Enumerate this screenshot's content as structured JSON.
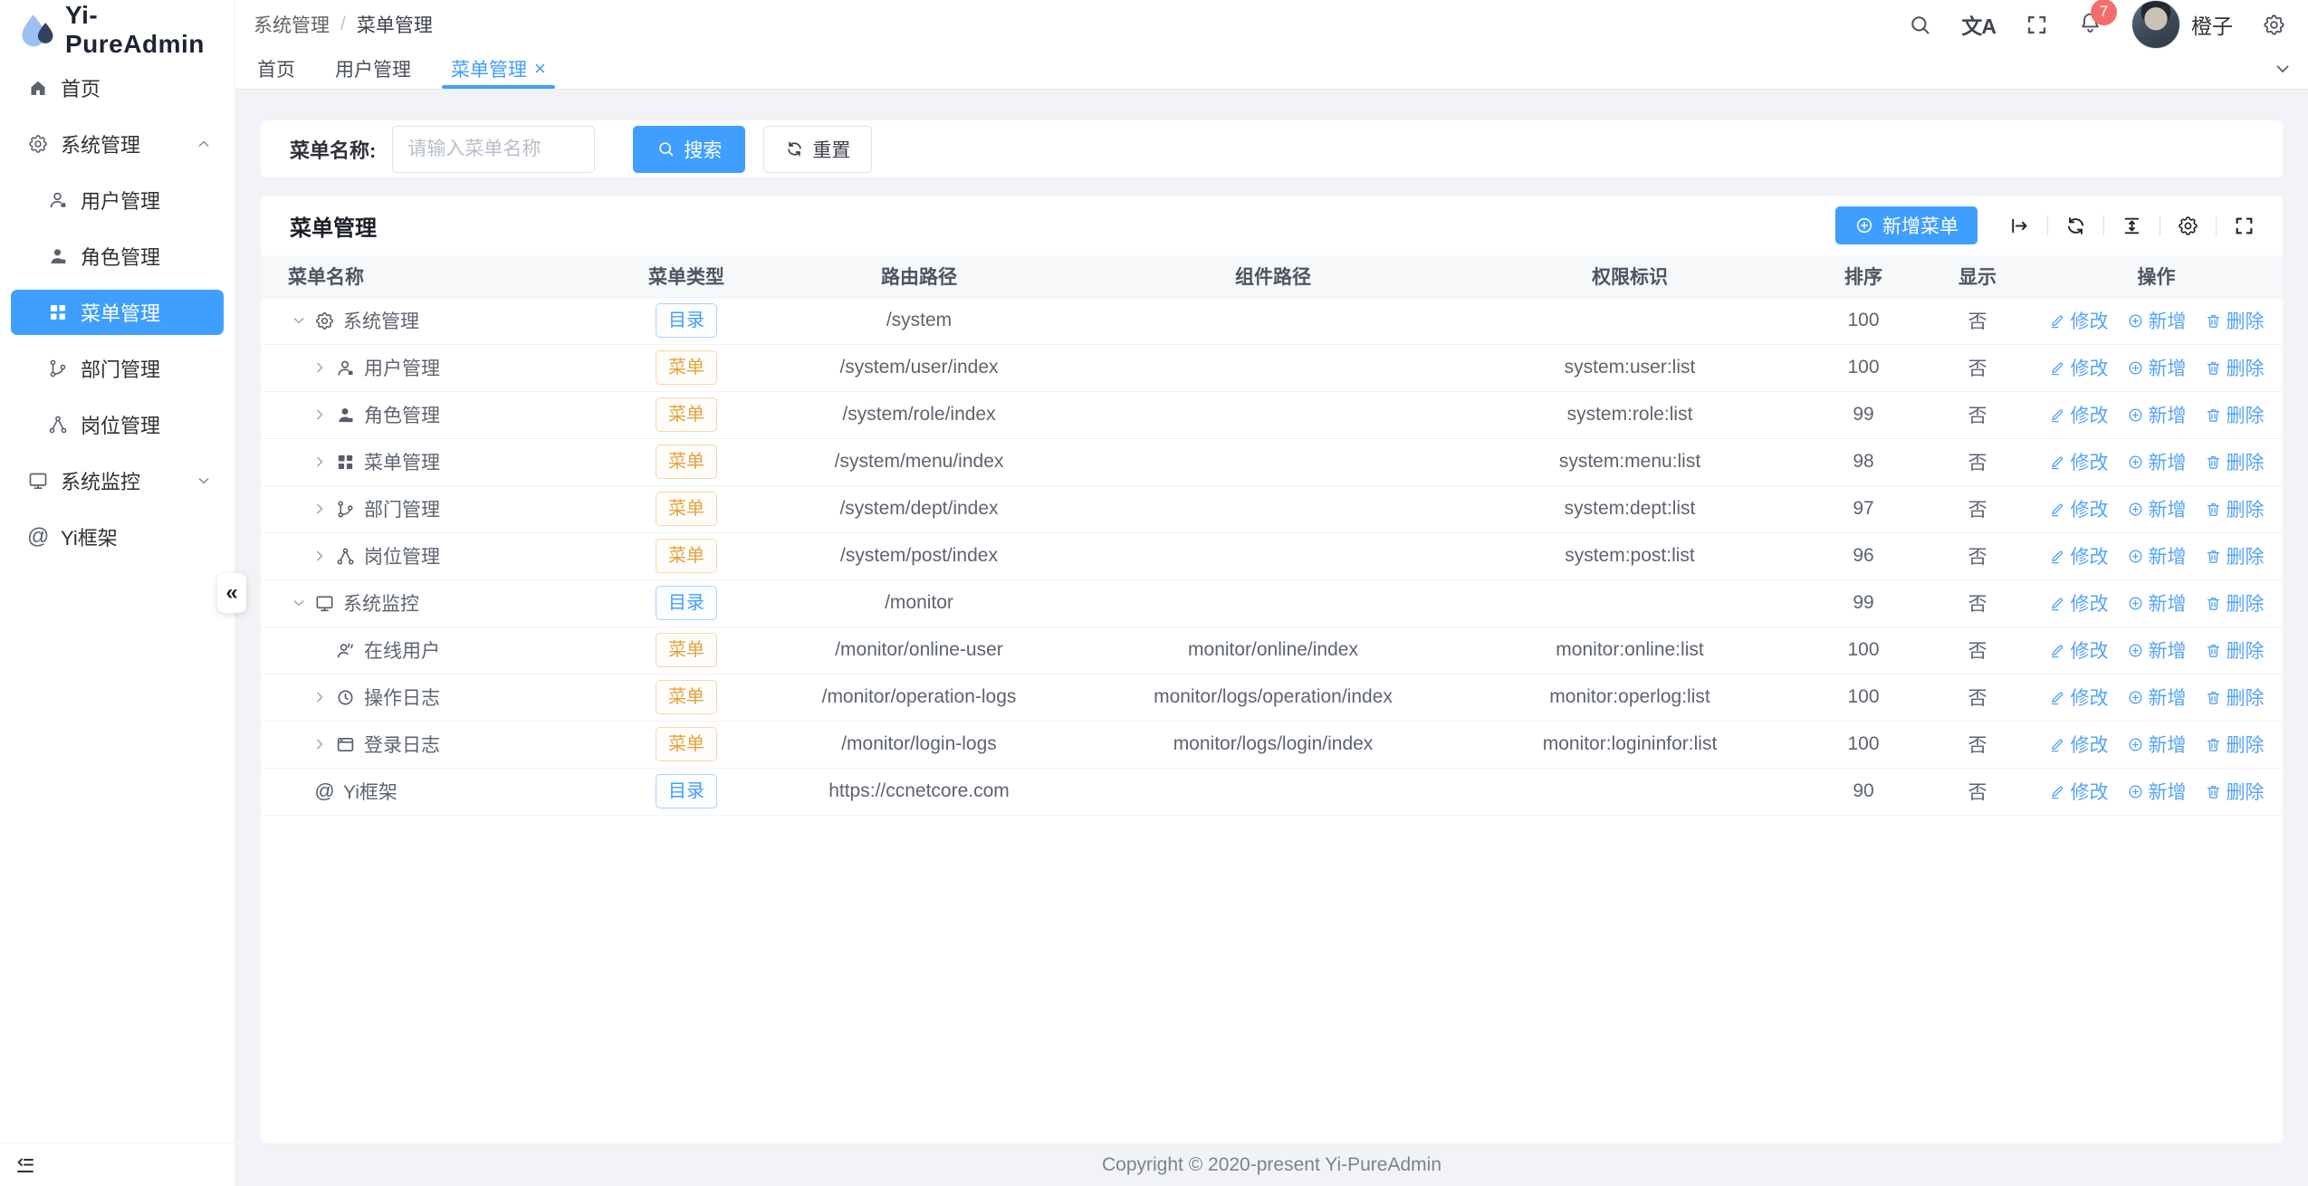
{
  "app": {
    "title": "Yi-PureAdmin"
  },
  "glyphs": {
    "collapse": "«",
    "close": "×",
    "translate": "文A",
    "at": "@"
  },
  "colors": {
    "primary": "#409eff",
    "badge": "#f56c6c",
    "tag_directory": "#409eff",
    "tag_menu": "#e6a23c"
  },
  "sidebar": {
    "logo_title": "Yi-PureAdmin",
    "items": [
      {
        "label": "首页",
        "icon": "home"
      },
      {
        "label": "系统管理",
        "icon": "gear",
        "state": "expanded"
      },
      {
        "label": "用户管理",
        "icon": "user"
      },
      {
        "label": "角色管理",
        "icon": "user-filled"
      },
      {
        "label": "菜单管理",
        "icon": "grid",
        "active": true
      },
      {
        "label": "部门管理",
        "icon": "tree"
      },
      {
        "label": "岗位管理",
        "icon": "share"
      },
      {
        "label": "系统监控",
        "icon": "monitor",
        "state": "collapsed"
      },
      {
        "label": "Yi框架",
        "icon": "at"
      }
    ]
  },
  "breadcrumb": {
    "items": [
      "系统管理",
      "菜单管理"
    ],
    "separator": "/"
  },
  "header": {
    "username": "橙子",
    "notification_count": "7"
  },
  "tabs": [
    {
      "label": "首页"
    },
    {
      "label": "用户管理"
    },
    {
      "label": "菜单管理",
      "active": true,
      "closable": true
    }
  ],
  "search": {
    "label": "菜单名称:",
    "placeholder": "请输入菜单名称",
    "value": "",
    "search_label": "搜索",
    "reset_label": "重置"
  },
  "panel": {
    "title": "菜单管理",
    "add_button": "新增菜单"
  },
  "table": {
    "columns": [
      "菜单名称",
      "菜单类型",
      "路由路径",
      "组件路径",
      "权限标识",
      "排序",
      "显示",
      "操作"
    ],
    "tag_labels": {
      "directory": "目录",
      "menu": "菜单"
    },
    "actions": [
      {
        "key": "edit",
        "label": "修改",
        "icon": "edit"
      },
      {
        "key": "add",
        "label": "新增",
        "icon": "circle-plus"
      },
      {
        "key": "delete",
        "label": "删除",
        "icon": "delete"
      }
    ],
    "rows": [
      {
        "name": "系统管理",
        "icon": "gear",
        "level": 0,
        "chevron": "down",
        "type": "directory",
        "route": "/system",
        "component": "",
        "perms": "",
        "sort": "100",
        "visible": "否"
      },
      {
        "name": "用户管理",
        "icon": "user",
        "level": 1,
        "chevron": "right",
        "type": "menu",
        "route": "/system/user/index",
        "component": "",
        "perms": "system:user:list",
        "sort": "100",
        "visible": "否"
      },
      {
        "name": "角色管理",
        "icon": "user-filled",
        "level": 1,
        "chevron": "right",
        "type": "menu",
        "route": "/system/role/index",
        "component": "",
        "perms": "system:role:list",
        "sort": "99",
        "visible": "否"
      },
      {
        "name": "菜单管理",
        "icon": "grid",
        "level": 1,
        "chevron": "right",
        "type": "menu",
        "route": "/system/menu/index",
        "component": "",
        "perms": "system:menu:list",
        "sort": "98",
        "visible": "否"
      },
      {
        "name": "部门管理",
        "icon": "tree",
        "level": 1,
        "chevron": "right",
        "type": "menu",
        "route": "/system/dept/index",
        "component": "",
        "perms": "system:dept:list",
        "sort": "97",
        "visible": "否"
      },
      {
        "name": "岗位管理",
        "icon": "share",
        "level": 1,
        "chevron": "right",
        "type": "menu",
        "route": "/system/post/index",
        "component": "",
        "perms": "system:post:list",
        "sort": "96",
        "visible": "否"
      },
      {
        "name": "系统监控",
        "icon": "monitor",
        "level": 0,
        "chevron": "down",
        "type": "directory",
        "route": "/monitor",
        "component": "",
        "perms": "",
        "sort": "99",
        "visible": "否"
      },
      {
        "name": "在线用户",
        "icon": "online-user",
        "level": 1,
        "chevron": "none",
        "type": "menu",
        "route": "/monitor/online-user",
        "component": "monitor/online/index",
        "perms": "monitor:online:list",
        "sort": "100",
        "visible": "否"
      },
      {
        "name": "操作日志",
        "icon": "history",
        "level": 1,
        "chevron": "right",
        "type": "menu",
        "route": "/monitor/operation-logs",
        "component": "monitor/logs/operation/index",
        "perms": "monitor:operlog:list",
        "sort": "100",
        "visible": "否"
      },
      {
        "name": "登录日志",
        "icon": "login-log",
        "level": 1,
        "chevron": "right",
        "type": "menu",
        "route": "/monitor/login-logs",
        "component": "monitor/logs/login/index",
        "perms": "monitor:logininfor:list",
        "sort": "100",
        "visible": "否"
      },
      {
        "name": "Yi框架",
        "icon": "at",
        "level": 0,
        "chevron": "none",
        "type": "directory",
        "route": "https://ccnetcore.com",
        "component": "",
        "perms": "",
        "sort": "90",
        "visible": "否"
      }
    ]
  },
  "footer": {
    "copyright": "Copyright © 2020-present Yi-PureAdmin"
  }
}
